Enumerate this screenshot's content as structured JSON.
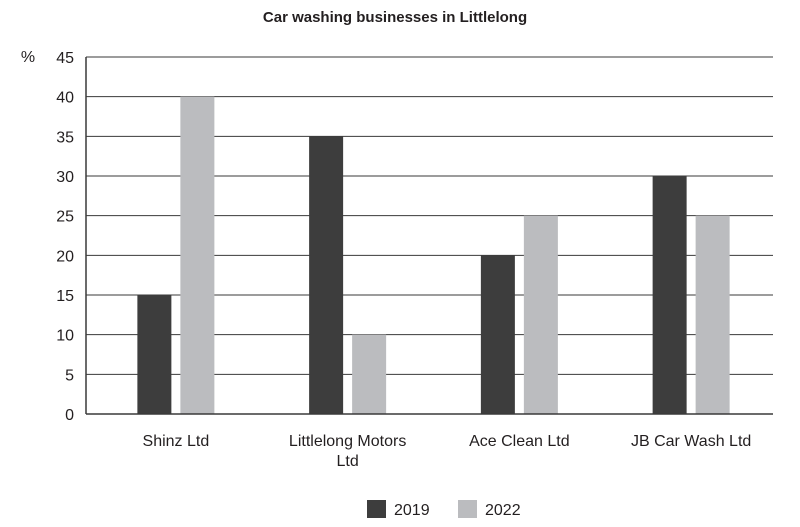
{
  "chart_data": {
    "type": "bar",
    "title": "Car washing businesses in Littlelong",
    "ylabel": "%",
    "xlabel": "",
    "ylim": [
      0,
      45
    ],
    "yticks": [
      0,
      5,
      10,
      15,
      20,
      25,
      30,
      35,
      40,
      45
    ],
    "grid": true,
    "legend_position": "bottom",
    "categories": [
      [
        "Shinz Ltd"
      ],
      [
        "Littlelong Motors",
        "Ltd"
      ],
      [
        "Ace Clean Ltd"
      ],
      [
        "JB Car Wash Ltd"
      ]
    ],
    "series": [
      {
        "name": "2019",
        "color": "#3d3d3d",
        "values": [
          15,
          35,
          20,
          30
        ]
      },
      {
        "name": "2022",
        "color": "#bbbcbf",
        "values": [
          40,
          10,
          25,
          25
        ]
      }
    ]
  }
}
